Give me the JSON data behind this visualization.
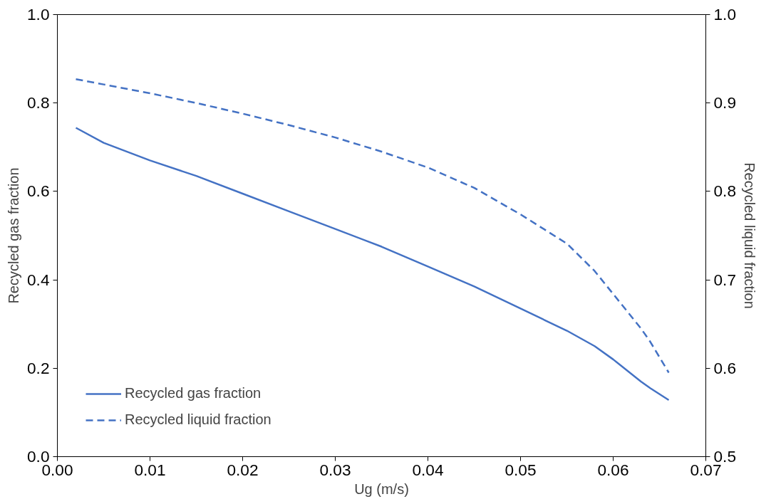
{
  "chart_data": {
    "type": "line",
    "xlabel": "Ug (m/s)",
    "ylabel": "Recycled gas fraction",
    "y2label": "Recycled liquid fraction",
    "x": [
      0.002,
      0.005,
      0.01,
      0.015,
      0.02,
      0.025,
      0.03,
      0.035,
      0.04,
      0.045,
      0.05,
      0.055,
      0.058,
      0.06,
      0.063,
      0.064,
      0.066
    ],
    "series": [
      {
        "name": "Recycled gas fraction",
        "color": "#4472c4",
        "line_style": "solid",
        "values": [
          0.744,
          0.71,
          0.67,
          0.635,
          0.595,
          0.555,
          0.515,
          0.475,
          0.43,
          0.385,
          0.335,
          0.285,
          0.25,
          0.22,
          0.17,
          0.155,
          0.128
        ]
      },
      {
        "name": "Recycled liquid fraction",
        "color": "#4472c4",
        "line_style": "dashed",
        "axis": "y2",
        "values": [
          0.927,
          0.921,
          0.911,
          0.9,
          0.888,
          0.875,
          0.861,
          0.845,
          0.827,
          0.804,
          0.774,
          0.741,
          0.71,
          0.684,
          0.645,
          0.63,
          0.595
        ]
      }
    ],
    "xlim": [
      0,
      0.07
    ],
    "xticks": [
      {
        "value": 0,
        "label": "0.00"
      },
      {
        "value": 0.01,
        "label": "0.01"
      },
      {
        "value": 0.02,
        "label": "0.02"
      },
      {
        "value": 0.03,
        "label": "0.03"
      },
      {
        "value": 0.04,
        "label": "0.04"
      },
      {
        "value": 0.05,
        "label": "0.05"
      },
      {
        "value": 0.06,
        "label": "0.06"
      },
      {
        "value": 0.07,
        "label": "0.07"
      }
    ],
    "ylim": [
      0,
      1
    ],
    "yticks": [
      {
        "value": 0,
        "label": "0.0"
      },
      0.2,
      0.4,
      0.6,
      0.8,
      {
        "value": 1,
        "label": "1.0"
      }
    ],
    "y2lim": [
      0.5,
      1
    ],
    "y2ticks": [
      0.5,
      0.6,
      0.7,
      0.8,
      0.9,
      {
        "value": 1,
        "label": "1.0"
      }
    ],
    "legend": "bottom left",
    "grid": false
  }
}
